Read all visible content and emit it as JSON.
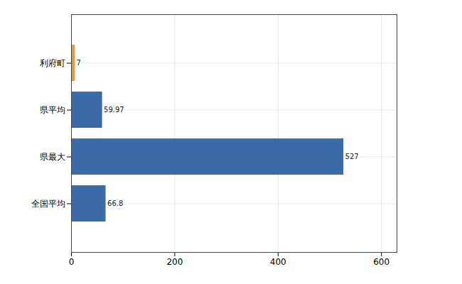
{
  "chart_data": {
    "type": "bar",
    "orientation": "horizontal",
    "categories": [
      "利府町",
      "県平均",
      "県最大",
      "全国平均"
    ],
    "values": [
      7,
      59.97,
      527,
      66.8
    ],
    "colors": [
      "#e8983a",
      "#3a6aa8",
      "#3a6aa8",
      "#3a6aa8"
    ],
    "xlim": [
      0,
      630
    ],
    "xticks": [
      0,
      200,
      400,
      600
    ],
    "grid": true,
    "data_labels": true
  }
}
